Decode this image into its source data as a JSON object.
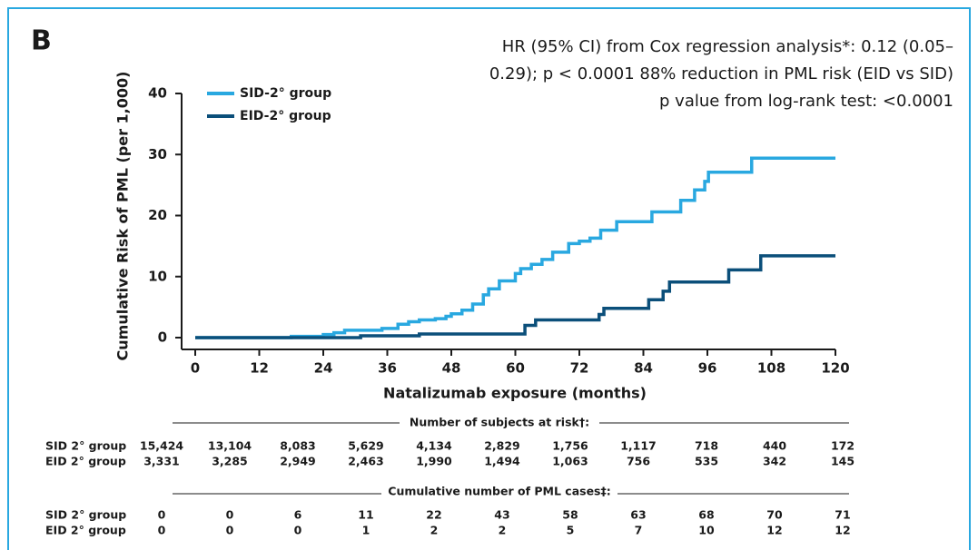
{
  "chart_data": {
    "type": "step",
    "panel_label": "B",
    "annotations": [
      "HR (95% CI) from Cox regression analysis*: 0.12 (0.05–",
      "0.29); p < 0.0001 88% reduction in PML risk (EID vs SID)",
      "p value from log-rank test: <0.0001"
    ],
    "xlabel": "Natalizumab exposure (months)",
    "ylabel": "Cumulative Risk of PML (per 1,000)",
    "xlim": [
      0,
      120
    ],
    "xticks": [
      0,
      12,
      24,
      36,
      48,
      60,
      72,
      84,
      96,
      108,
      120
    ],
    "ylim": [
      0,
      40
    ],
    "yticks": [
      0,
      10,
      20,
      30,
      40
    ],
    "grid": false,
    "legend": "upper-left",
    "series": [
      {
        "name": "SID-2° group",
        "color": "#29a8e0",
        "x": [
          0,
          18,
          24,
          26,
          28,
          35,
          38,
          40,
          42,
          45,
          47,
          48,
          50,
          52,
          54,
          55,
          57,
          60,
          61,
          63,
          65,
          67,
          70,
          72,
          74,
          76,
          79,
          85.6,
          91,
          93.6,
          95.5,
          96.2,
          104.3,
          120
        ],
        "values": [
          0,
          0.2,
          0.5,
          0.8,
          1.2,
          1.5,
          2.2,
          2.6,
          2.9,
          3.1,
          3.5,
          3.9,
          4.5,
          5.5,
          7,
          8,
          9.3,
          10.5,
          11.3,
          12,
          12.8,
          14,
          15.4,
          15.8,
          16.3,
          17.6,
          19,
          20.6,
          22.5,
          24.2,
          25.6,
          27.1,
          29.4,
          29.4
        ]
      },
      {
        "name": "EID-2° group",
        "color": "#0b4f7a",
        "x": [
          0,
          31,
          42,
          61.8,
          63.8,
          75.7,
          76.6,
          85,
          87.7,
          88.9,
          100,
          106,
          120
        ],
        "values": [
          0,
          0.3,
          0.6,
          2,
          2.9,
          3.8,
          4.8,
          6.2,
          7.6,
          9.1,
          11.1,
          13.4,
          13.4
        ]
      }
    ],
    "tables": [
      {
        "title": "Number of subjects at risk†:",
        "rows": [
          {
            "label": "SID 2° group",
            "values": [
              "15,424",
              "13,104",
              "8,083",
              "5,629",
              "4,134",
              "2,829",
              "1,756",
              "1,117",
              "718",
              "440",
              "172"
            ]
          },
          {
            "label": "EID 2° group",
            "values": [
              "3,331",
              "3,285",
              "2,949",
              "2,463",
              "1,990",
              "1,494",
              "1,063",
              "756",
              "535",
              "342",
              "145"
            ]
          }
        ]
      },
      {
        "title": "Cumulative number of PML cases‡:",
        "rows": [
          {
            "label": "SID 2° group",
            "values": [
              "0",
              "0",
              "6",
              "11",
              "22",
              "43",
              "58",
              "63",
              "68",
              "70",
              "71"
            ]
          },
          {
            "label": "EID 2° group",
            "values": [
              "0",
              "0",
              "0",
              "1",
              "2",
              "2",
              "5",
              "7",
              "10",
              "12",
              "12"
            ]
          }
        ]
      }
    ]
  }
}
